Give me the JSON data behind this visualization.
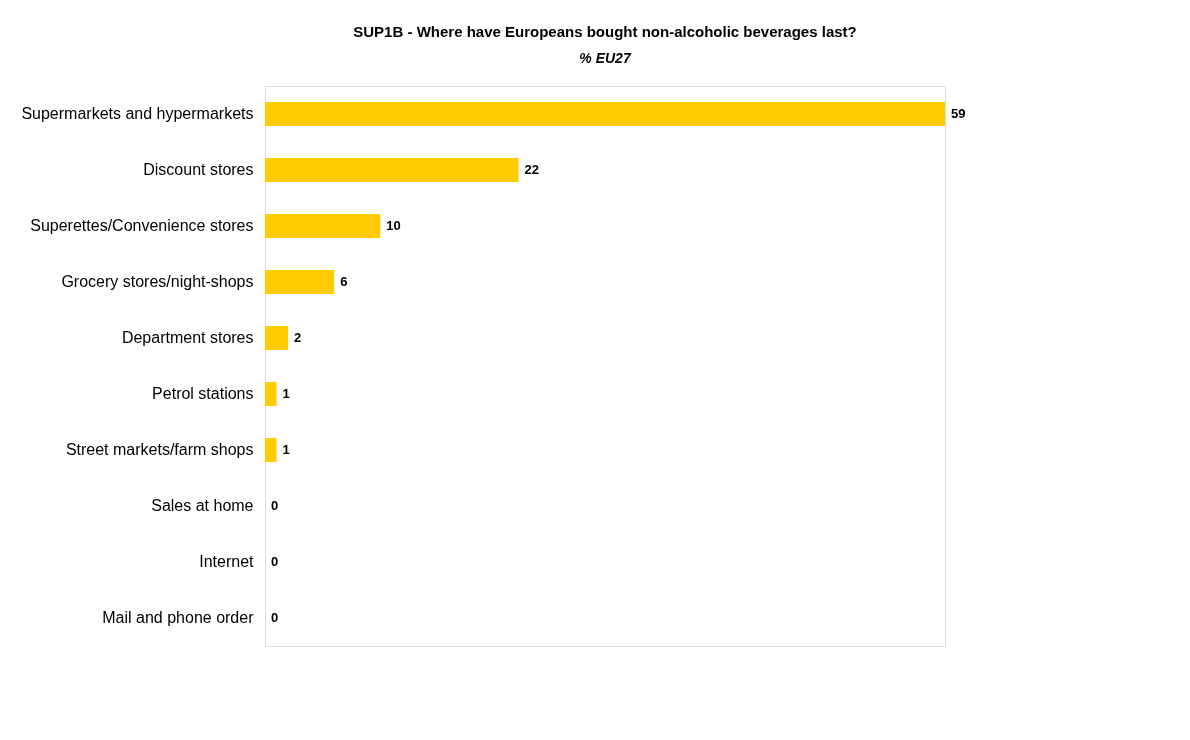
{
  "chart_data": {
    "type": "bar",
    "orientation": "horizontal",
    "title": "SUP1B - Where have Europeans bought non-alcoholic beverages last?",
    "subtitle": "% EU27",
    "categories": [
      "Supermarkets and hypermarkets",
      "Discount stores",
      "Superettes/Convenience stores",
      "Grocery stores/night-shops",
      "Department stores",
      "Petrol stations",
      "Street markets/farm shops",
      "Sales at home",
      "Internet",
      "Mail and phone order"
    ],
    "values": [
      59,
      22,
      10,
      6,
      2,
      1,
      1,
      0,
      0,
      0
    ],
    "color": "#ffcc00",
    "data_labels": true,
    "grid": false
  }
}
